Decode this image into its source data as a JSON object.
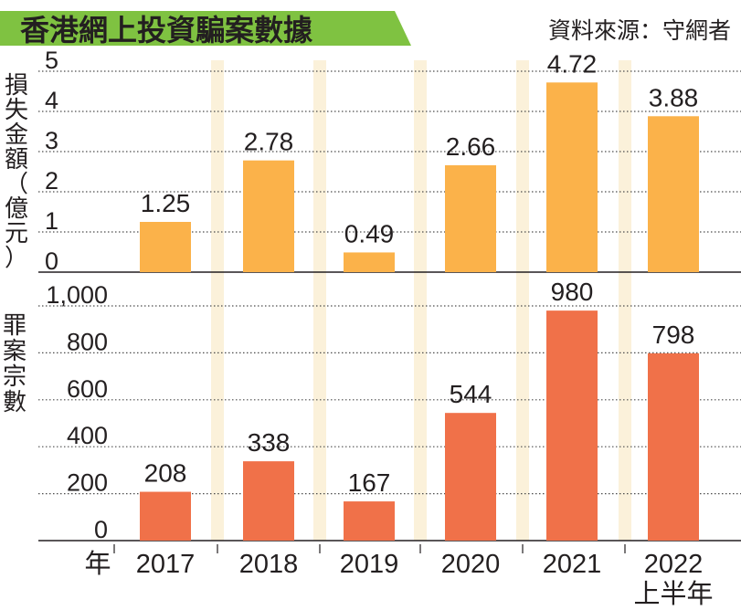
{
  "header": {
    "title": "香港網上投資騙案數據",
    "source": "資料來源：守網者"
  },
  "colors": {
    "title_bg": "#7fc241",
    "loss_bar": "#fbb24a",
    "case_bar": "#f07149",
    "stripe": "#fbf1da",
    "grid": "#4d4d4d"
  },
  "chart_data": [
    {
      "type": "bar",
      "ylabel": "損失金額（億元）",
      "ylim": [
        0,
        5
      ],
      "yticks": [
        "0",
        "1",
        "2",
        "3",
        "4",
        "5"
      ],
      "categories": [
        "2017",
        "2018",
        "2019",
        "2020",
        "2021",
        "2022"
      ],
      "values": [
        1.25,
        2.78,
        0.49,
        2.66,
        4.72,
        3.88
      ],
      "labels": [
        "1.25",
        "2.78",
        "0.49",
        "2.66",
        "4.72",
        "3.88"
      ],
      "grid": true
    },
    {
      "type": "bar",
      "ylabel": "罪案宗數",
      "ylim": [
        0,
        1000
      ],
      "yticks": [
        "0",
        "200",
        "400",
        "600",
        "800",
        "1,000"
      ],
      "categories": [
        "2017",
        "2018",
        "2019",
        "2020",
        "2021",
        "2022"
      ],
      "values": [
        208,
        338,
        167,
        544,
        980,
        798
      ],
      "labels": [
        "208",
        "338",
        "167",
        "544",
        "980",
        "798"
      ],
      "grid": true
    }
  ],
  "x_axis": {
    "label": "年",
    "categories": [
      "2017",
      "2018",
      "2019",
      "2020",
      "2021",
      "2022"
    ],
    "last_suffix": "上半年"
  }
}
